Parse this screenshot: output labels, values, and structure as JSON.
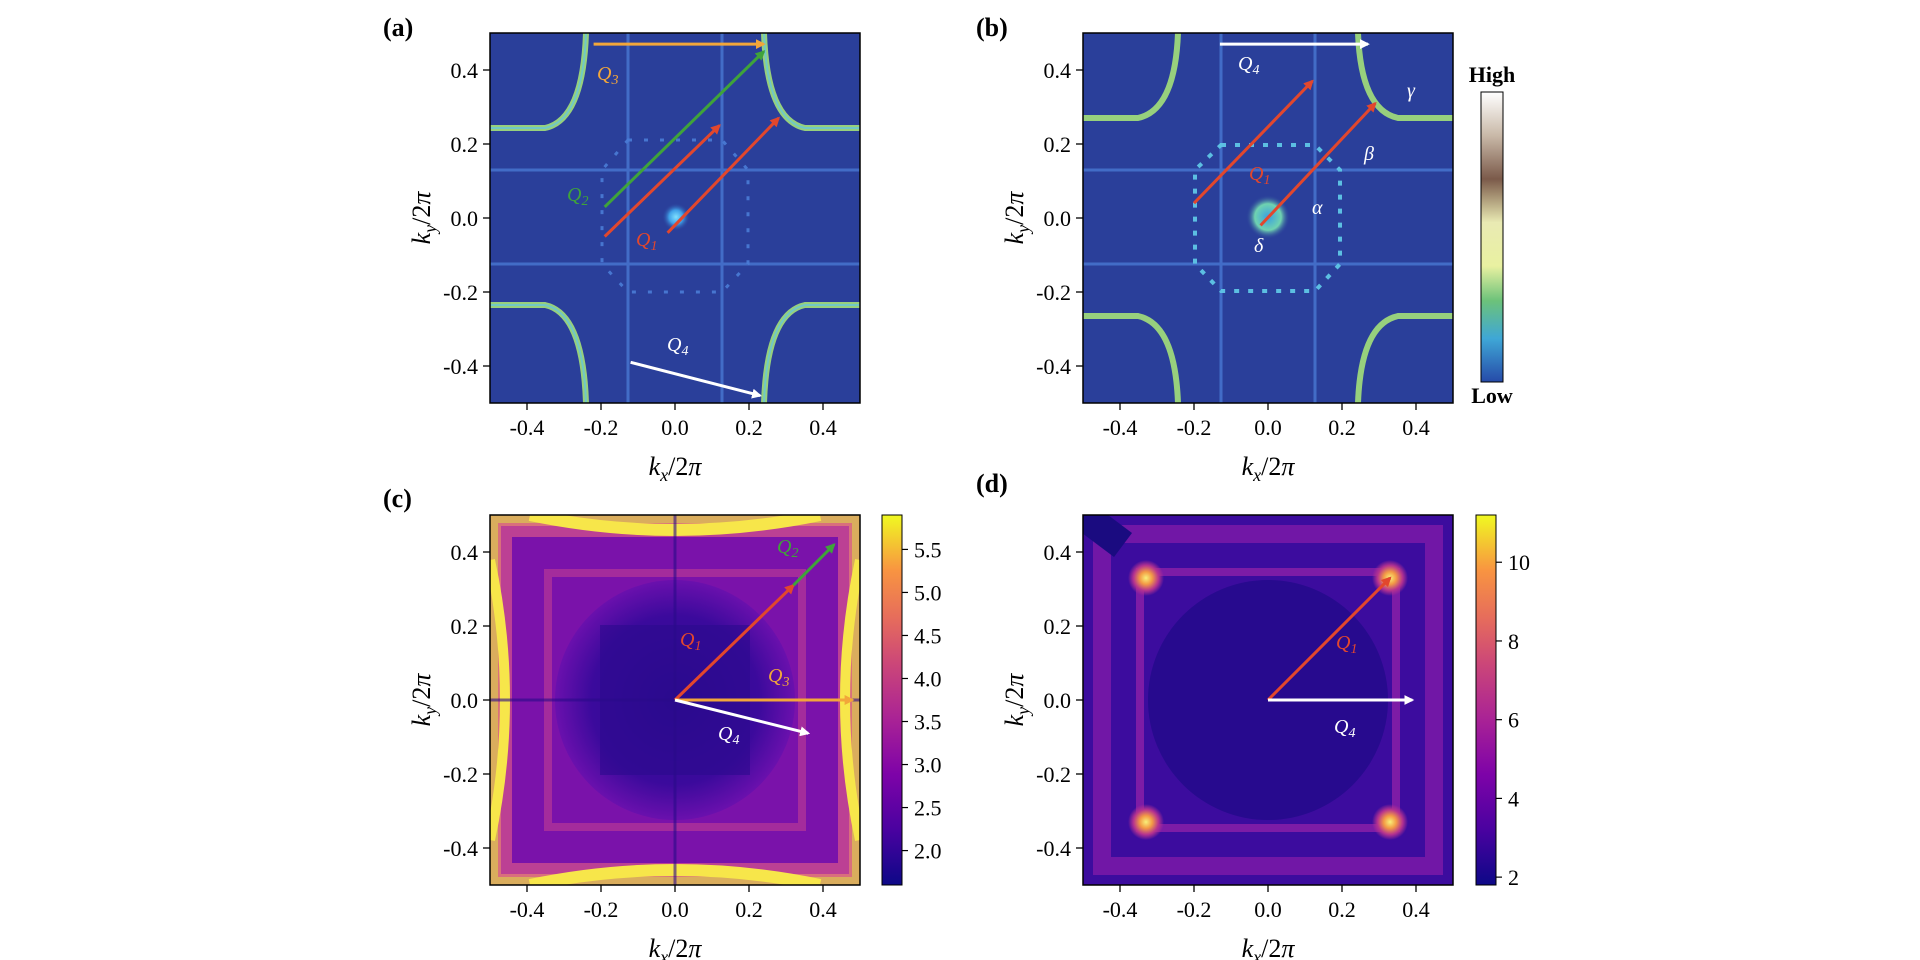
{
  "chart_data": [
    {
      "panel": "(a)",
      "type": "heatmap",
      "description": "Fermi-surface spectral map, colormap 'viridis-like' (Low=dark blue, High=white)",
      "xlabel": "k_x/2π",
      "ylabel": "k_y/2π",
      "xlim": [
        -0.5,
        0.5
      ],
      "ylim": [
        -0.5,
        0.5
      ],
      "xticks": [
        "-0.4",
        "-0.2",
        "0.0",
        "0.2",
        "0.4"
      ],
      "yticks": [
        "0.4",
        "0.2",
        "0.0",
        "-0.2",
        "-0.4"
      ],
      "vectors": [
        {
          "label": "Q3",
          "sub": "3",
          "color": "#f2a63a",
          "from": [
            -0.22,
            0.47
          ],
          "to": [
            0.24,
            0.47
          ]
        },
        {
          "label": "Q2",
          "sub": "2",
          "color": "#3fa33a",
          "from": [
            -0.19,
            0.03
          ],
          "to": [
            0.24,
            0.45
          ]
        },
        {
          "label": "Q1",
          "sub": "1",
          "color": "#e2472d",
          "from": [
            -0.19,
            -0.05
          ],
          "to": [
            0.12,
            0.25
          ]
        },
        {
          "label": "Q1",
          "sub": "1",
          "color": "#e2472d",
          "from": [
            -0.02,
            -0.04
          ],
          "to": [
            0.28,
            0.27
          ]
        },
        {
          "label": "Q4",
          "sub": "4",
          "color": "#ffffff",
          "from": [
            -0.12,
            -0.39
          ],
          "to": [
            0.23,
            -0.48
          ]
        }
      ]
    },
    {
      "panel": "(b)",
      "type": "heatmap",
      "xlabel": "k_x/2π",
      "ylabel": "k_y/2π",
      "xlim": [
        -0.5,
        0.5
      ],
      "ylim": [
        -0.5,
        0.5
      ],
      "xticks": [
        "-0.4",
        "-0.2",
        "0.0",
        "0.2",
        "0.4"
      ],
      "yticks": [
        "0.4",
        "0.2",
        "0.0",
        "-0.2",
        "-0.4"
      ],
      "band_labels": [
        "α",
        "β",
        "γ",
        "δ"
      ],
      "vectors": [
        {
          "label": "Q4",
          "sub": "4",
          "color": "#ffffff",
          "from": [
            -0.13,
            0.47
          ],
          "to": [
            0.27,
            0.47
          ]
        },
        {
          "label": "Q1",
          "sub": "1",
          "color": "#e2472d",
          "from": [
            -0.2,
            0.04
          ],
          "to": [
            0.12,
            0.37
          ]
        },
        {
          "label": "Q1",
          "sub": "1",
          "color": "#e2472d",
          "from": [
            -0.02,
            -0.02
          ],
          "to": [
            0.29,
            0.31
          ]
        }
      ],
      "colorbar": {
        "top": "High",
        "bottom": "Low"
      }
    },
    {
      "panel": "(c)",
      "type": "heatmap",
      "description": "colormap plasma",
      "xlabel": "k_x/2π",
      "ylabel": "k_y/2π",
      "xlim": [
        -0.5,
        0.5
      ],
      "ylim": [
        -0.5,
        0.5
      ],
      "xticks": [
        "-0.4",
        "-0.2",
        "0.0",
        "0.2",
        "0.4"
      ],
      "yticks": [
        "0.4",
        "0.2",
        "0.0",
        "-0.2",
        "-0.4"
      ],
      "zlim": [
        1.6,
        5.9
      ],
      "colorbar_ticks": [
        "5.5",
        "5.0",
        "4.5",
        "4.0",
        "3.5",
        "3.0",
        "2.5",
        "2.0"
      ],
      "vectors": [
        {
          "label": "Q1",
          "sub": "1",
          "color": "#e2472d",
          "from": [
            0.0,
            0.0
          ],
          "to": [
            0.32,
            0.31
          ]
        },
        {
          "label": "Q2",
          "sub": "2",
          "color": "#3fa33a",
          "from": [
            0.32,
            0.31
          ],
          "to": [
            0.43,
            0.42
          ]
        },
        {
          "label": "Q3",
          "sub": "3",
          "color": "#f2a63a",
          "from": [
            0.0,
            0.0
          ],
          "to": [
            0.48,
            0.0
          ]
        },
        {
          "label": "Q4",
          "sub": "4",
          "color": "#ffffff",
          "from": [
            0.0,
            0.0
          ],
          "to": [
            0.36,
            -0.09
          ]
        }
      ]
    },
    {
      "panel": "(d)",
      "type": "heatmap",
      "description": "colormap plasma",
      "xlabel": "k_x/2π",
      "ylabel": "k_y/2π",
      "xlim": [
        -0.5,
        0.5
      ],
      "ylim": [
        -0.5,
        0.5
      ],
      "xticks": [
        "-0.4",
        "-0.2",
        "0.0",
        "0.2",
        "0.4"
      ],
      "yticks": [
        "0.4",
        "0.2",
        "0.0",
        "-0.2",
        "-0.4"
      ],
      "zlim": [
        1.8,
        11.2
      ],
      "colorbar_ticks": [
        "10",
        "8",
        "6",
        "4",
        "2"
      ],
      "vectors": [
        {
          "label": "Q1",
          "sub": "1",
          "color": "#e2472d",
          "from": [
            0.0,
            0.0
          ],
          "to": [
            0.33,
            0.33
          ]
        },
        {
          "label": "Q4",
          "sub": "4",
          "color": "#ffffff",
          "from": [
            0.0,
            0.0
          ],
          "to": [
            0.39,
            0.0
          ]
        }
      ]
    }
  ],
  "colors": {
    "heatmap_bg": "#2a3f9a",
    "fermi_line": "#a3e07a",
    "grid_line": "#4a7cd6",
    "q1": "#e2472d",
    "q2": "#3fa33a",
    "q3": "#f2a63a",
    "q4": "#ffffff"
  }
}
